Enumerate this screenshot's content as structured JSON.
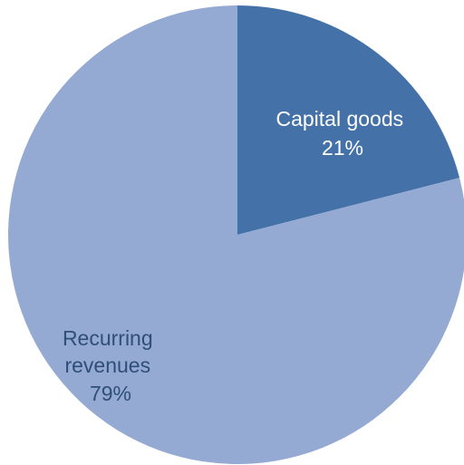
{
  "chart_data": {
    "type": "pie",
    "slices": [
      {
        "name": "Capital goods",
        "value": 21,
        "value_label": "21%",
        "color": "#4472A8",
        "text_color": "#ffffff"
      },
      {
        "name": "Recurring revenues",
        "value": 79,
        "value_label": "79%",
        "color": "#95AAD3",
        "text_color": "#2E4F78"
      }
    ],
    "start_angle_deg": 0,
    "direction": "clockwise"
  }
}
